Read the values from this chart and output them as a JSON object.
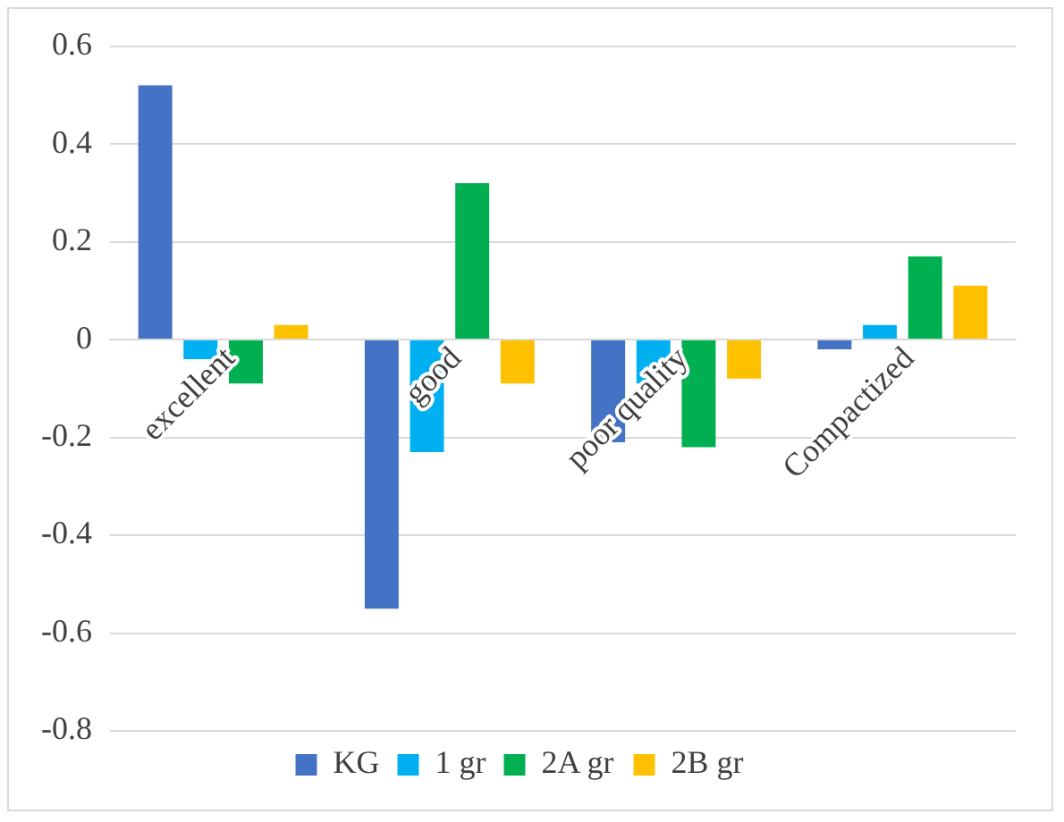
{
  "chart_data": {
    "type": "bar",
    "categories": [
      "excellent",
      "good",
      "poor quality",
      "Compactized"
    ],
    "series": [
      {
        "name": "KG",
        "color": "#4472c4",
        "values": [
          0.52,
          -0.55,
          -0.21,
          -0.02
        ]
      },
      {
        "name": "1 gr",
        "color": "#00b0f0",
        "values": [
          -0.04,
          -0.23,
          -0.09,
          0.03
        ]
      },
      {
        "name": "2A gr",
        "color": "#00b050",
        "values": [
          -0.09,
          0.32,
          -0.22,
          0.17
        ]
      },
      {
        "name": "2B gr",
        "color": "#ffc000",
        "values": [
          0.03,
          -0.09,
          -0.08,
          0.11
        ]
      }
    ],
    "ylim": [
      -0.8,
      0.6
    ],
    "yticks": [
      -0.8,
      -0.6,
      -0.4,
      -0.2,
      0,
      0.2,
      0.4,
      0.6
    ],
    "grid": "y",
    "legend": "bottom"
  }
}
